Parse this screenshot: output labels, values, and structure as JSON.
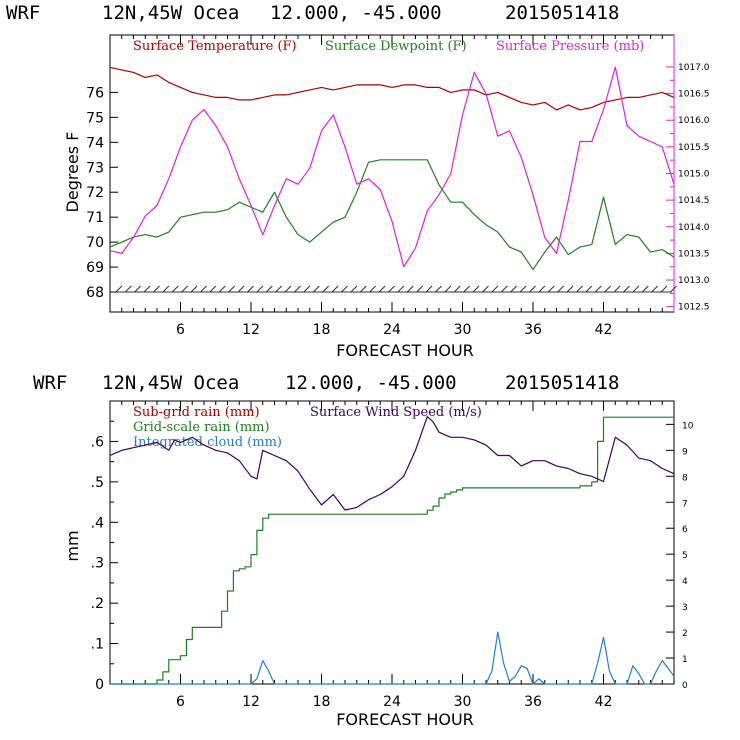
{
  "chart_data": [
    {
      "type": "line",
      "header": {
        "model": "WRF",
        "location": "12N,45W Ocea",
        "coords": "12.000, -45.000",
        "run": "2015051418"
      },
      "xlabel": "FORECAST HOUR",
      "ylabel": "Degrees F",
      "xlim": [
        0,
        48
      ],
      "ylim": [
        67.2,
        78.3
      ],
      "y2lim": [
        1012.4,
        1017.6
      ],
      "xticks": [
        6,
        12,
        18,
        24,
        30,
        36,
        42
      ],
      "yticks": [
        68,
        69,
        70,
        71,
        72,
        73,
        74,
        75,
        76
      ],
      "y2ticks": [
        "1012.5",
        "1013.0",
        "1013.5",
        "1014.0",
        "1014.5",
        "1015.0",
        "1015.5",
        "1016.0",
        "1016.5",
        "1017.0"
      ],
      "colors": {
        "temp": "#b00000",
        "dew": "#208020",
        "pres": "#e020e0",
        "wind": "#303030",
        "frame": "#000000"
      },
      "series": [
        {
          "name": "Surface Temperature (F)",
          "color": "#b00000",
          "axis": "left",
          "x": [
            0,
            1,
            2,
            3,
            4,
            5,
            6,
            7,
            8,
            9,
            10,
            11,
            12,
            13,
            14,
            15,
            16,
            17,
            18,
            19,
            20,
            21,
            22,
            23,
            24,
            25,
            26,
            27,
            28,
            29,
            30,
            31,
            32,
            33,
            34,
            35,
            36,
            37,
            38,
            39,
            40,
            41,
            42,
            43,
            44,
            45,
            46,
            47,
            48
          ],
          "values": [
            77.0,
            76.9,
            76.8,
            76.6,
            76.7,
            76.4,
            76.2,
            76.0,
            75.9,
            75.8,
            75.8,
            75.7,
            75.7,
            75.8,
            75.9,
            75.9,
            76.0,
            76.1,
            76.2,
            76.1,
            76.2,
            76.3,
            76.3,
            76.3,
            76.2,
            76.3,
            76.3,
            76.2,
            76.2,
            76.0,
            76.1,
            76.1,
            75.9,
            76.0,
            75.8,
            75.6,
            75.5,
            75.6,
            75.3,
            75.5,
            75.3,
            75.4,
            75.6,
            75.7,
            75.8,
            75.8,
            75.9,
            76.0,
            75.8
          ]
        },
        {
          "name": "Surface Dewpoint (F)",
          "color": "#208020",
          "axis": "left",
          "x": [
            0,
            1,
            2,
            3,
            4,
            5,
            6,
            7,
            8,
            9,
            10,
            11,
            12,
            13,
            14,
            15,
            16,
            17,
            18,
            19,
            20,
            21,
            22,
            23,
            24,
            25,
            26,
            27,
            28,
            29,
            30,
            31,
            32,
            33,
            34,
            35,
            36,
            37,
            38,
            39,
            40,
            41,
            42,
            43,
            44,
            45,
            46,
            47,
            48
          ],
          "values": [
            69.8,
            70.0,
            70.2,
            70.3,
            70.2,
            70.4,
            71.0,
            71.1,
            71.2,
            71.2,
            71.3,
            71.6,
            71.4,
            71.2,
            72.0,
            71.0,
            70.3,
            70.0,
            70.4,
            70.8,
            71.0,
            72.0,
            73.2,
            73.3,
            73.3,
            73.3,
            73.3,
            73.3,
            72.3,
            71.6,
            71.6,
            71.1,
            70.7,
            70.4,
            69.8,
            69.6,
            68.9,
            69.6,
            70.2,
            69.5,
            69.8,
            69.9,
            71.8,
            69.9,
            70.3,
            70.2,
            69.6,
            69.7,
            69.4
          ]
        },
        {
          "name": "Surface Pressure (mb)",
          "color": "#e020e0",
          "axis": "right",
          "x": [
            0,
            1,
            2,
            3,
            4,
            5,
            6,
            7,
            8,
            9,
            10,
            11,
            12,
            13,
            14,
            15,
            16,
            17,
            18,
            19,
            20,
            21,
            22,
            23,
            24,
            25,
            26,
            27,
            28,
            29,
            30,
            31,
            32,
            33,
            34,
            35,
            36,
            37,
            38,
            39,
            40,
            41,
            42,
            43,
            44,
            45,
            46,
            47,
            48
          ],
          "values": [
            1013.55,
            1013.5,
            1013.8,
            1014.2,
            1014.4,
            1014.9,
            1015.5,
            1016.0,
            1016.2,
            1015.9,
            1015.5,
            1014.9,
            1014.4,
            1013.85,
            1014.4,
            1014.9,
            1014.8,
            1015.1,
            1015.8,
            1016.1,
            1015.5,
            1014.8,
            1014.9,
            1014.7,
            1014.1,
            1013.25,
            1013.6,
            1014.3,
            1014.6,
            1015.0,
            1016.1,
            1016.9,
            1016.5,
            1015.7,
            1015.8,
            1015.3,
            1014.6,
            1013.8,
            1013.5,
            1014.5,
            1015.6,
            1015.6,
            1016.2,
            1017.0,
            1015.9,
            1015.7,
            1015.6,
            1015.5,
            1014.8
          ]
        }
      ]
    },
    {
      "type": "line",
      "header": {
        "model": "WRF",
        "location": "12N,45W Ocea",
        "coords": "12.000, -45.000",
        "run": "2015051418"
      },
      "xlabel": "FORECAST HOUR",
      "ylabel": "mm",
      "xlim": [
        0,
        48
      ],
      "ylim": [
        0,
        0.7
      ],
      "y2lim": [
        0,
        10.9
      ],
      "xticks": [
        6,
        12,
        18,
        24,
        30,
        36,
        42
      ],
      "yticks": [
        0,
        0.1,
        0.2,
        0.3,
        0.4,
        0.5,
        0.6
      ],
      "ytick_labels": [
        "0",
        ".1",
        ".2",
        ".3",
        ".4",
        ".5",
        ".6"
      ],
      "y2ticks": [
        "0",
        "1",
        "2",
        "3",
        "4",
        "5",
        "6",
        "7",
        "8",
        "9",
        "10"
      ],
      "colors": {
        "subgrid": "#b00000",
        "grid": "#208020",
        "cloud": "#2080d0",
        "wind": "#400060",
        "frame": "#000000"
      },
      "legend": [
        {
          "label": "Sub-grid rain (mm)",
          "color": "#b00000"
        },
        {
          "label": "Surface Wind Speed (m/s)",
          "color": "#400060"
        },
        {
          "label": "Grid-scale rain (mm)",
          "color": "#208020"
        },
        {
          "label": "Integrated cloud (mm)",
          "color": "#2080d0"
        }
      ],
      "series": [
        {
          "name": "Grid-scale rain (mm)",
          "color": "#208020",
          "axis": "left",
          "step": true,
          "x": [
            0,
            3.5,
            4,
            4.5,
            5,
            6,
            6.5,
            7,
            8,
            9,
            9.5,
            10,
            10.5,
            11,
            11.5,
            12,
            12.5,
            13,
            13.5,
            14,
            26,
            27,
            27.5,
            28,
            28.5,
            29,
            29.5,
            30,
            40,
            41,
            41.5,
            42,
            48
          ],
          "values": [
            0,
            0,
            0.01,
            0.03,
            0.06,
            0.07,
            0.11,
            0.14,
            0.14,
            0.14,
            0.18,
            0.23,
            0.28,
            0.285,
            0.29,
            0.32,
            0.38,
            0.41,
            0.42,
            0.42,
            0.42,
            0.43,
            0.44,
            0.46,
            0.47,
            0.475,
            0.48,
            0.485,
            0.49,
            0.5,
            0.6,
            0.66,
            0.66
          ]
        },
        {
          "name": "Surface Wind Speed (m/s)",
          "color": "#400060",
          "axis": "right",
          "x": [
            0,
            1,
            2,
            3,
            4,
            5,
            5.5,
            6,
            7,
            8,
            9,
            10,
            11,
            12,
            12.5,
            13,
            14,
            15,
            16,
            17,
            18,
            19,
            20,
            21,
            22,
            23,
            24,
            25,
            26,
            27,
            27.5,
            28,
            29,
            30,
            31,
            32,
            33,
            34,
            35,
            36,
            37,
            38,
            39,
            40,
            41,
            42,
            43,
            44,
            45,
            46,
            47,
            48
          ],
          "values": [
            8.8,
            9.0,
            9.1,
            9.2,
            9.3,
            9.0,
            9.4,
            9.3,
            9.5,
            9.2,
            9.0,
            8.9,
            8.6,
            8.0,
            7.9,
            9.0,
            8.8,
            8.6,
            8.2,
            7.5,
            6.9,
            7.3,
            6.7,
            6.8,
            7.1,
            7.3,
            7.6,
            8.0,
            9.0,
            10.3,
            10.1,
            9.7,
            9.5,
            9.5,
            9.4,
            9.2,
            8.8,
            8.8,
            8.4,
            8.6,
            8.6,
            8.4,
            8.3,
            8.1,
            8.0,
            7.8,
            9.5,
            9.2,
            8.7,
            8.6,
            8.3,
            8.1
          ]
        },
        {
          "name": "Integrated cloud (mm)",
          "color": "#2080d0",
          "axis": "right",
          "x": [
            0,
            12,
            12.5,
            13,
            13.5,
            14,
            32,
            32.5,
            33,
            33.5,
            34,
            34.5,
            35,
            35.5,
            36,
            36.5,
            37,
            41,
            41.5,
            42,
            42.5,
            43,
            44,
            44.5,
            45,
            45.5,
            46,
            46.5,
            47,
            47.5,
            48
          ],
          "values": [
            0,
            0,
            0.2,
            0.9,
            0.5,
            0,
            0,
            0.5,
            2.0,
            0.8,
            0.1,
            0.3,
            0.7,
            0.6,
            0,
            0.2,
            0,
            0,
            0.8,
            1.8,
            0.5,
            0,
            0,
            0.7,
            0.4,
            0,
            0,
            0.5,
            0.9,
            0.6,
            0.3
          ]
        }
      ]
    }
  ]
}
